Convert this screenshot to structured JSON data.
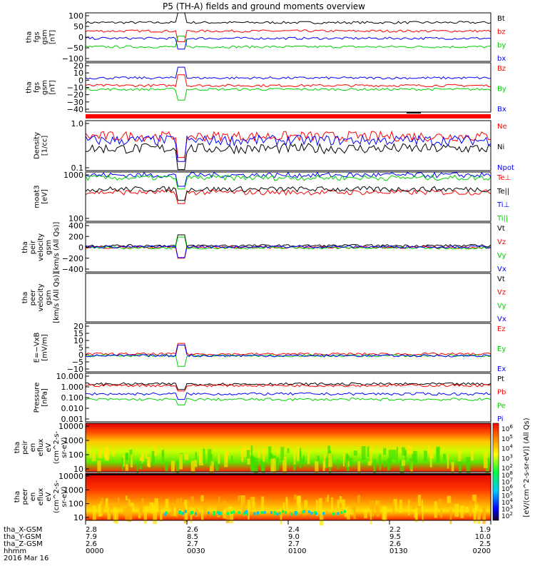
{
  "title": "P5 (TH-A) fields and ground moments overview",
  "colors": {
    "black": "#000000",
    "red": "#ff0000",
    "green": "#00d000",
    "blue": "#0000ff",
    "dgreen": "#00b000"
  },
  "x_axis": {
    "ticks": [
      "0000",
      "0030",
      "0100",
      "0130",
      "0200"
    ],
    "date_label": "2016 Mar 16",
    "rows": [
      {
        "label": "tha_X-GSM",
        "values": [
          "2.8",
          "2.6",
          "2.4",
          "2.2",
          "1.9"
        ]
      },
      {
        "label": "tha_Y-GSM",
        "values": [
          "7.9",
          "8.5",
          "9.0",
          "9.5",
          "10.0"
        ]
      },
      {
        "label": "tha_Z-GSM",
        "values": [
          "2.6",
          "2.7",
          "2.7",
          "2.6",
          "2.5"
        ]
      },
      {
        "label": "hhmm",
        "values": [
          "0000",
          "0030",
          "0100",
          "0130",
          "0200"
        ]
      }
    ]
  },
  "colorbar": {
    "label": "[eV/(cm^2-s-sr-eV)] (All Qs)",
    "upper_ticks": [
      "10^6",
      "10^5",
      "10^4",
      "10^3",
      "10^2"
    ],
    "lower_ticks": [
      "10^8",
      "10^7",
      "10^6",
      "10^5",
      "10^4",
      "10^3",
      "10^2"
    ]
  },
  "chart_data": [
    {
      "type": "line",
      "ylabel": [
        "tha",
        "fgs",
        "gsm",
        "[nT]"
      ],
      "yticks": [
        "100",
        "50",
        "0",
        "−50",
        "−100"
      ],
      "ylim": [
        -100,
        100
      ],
      "series": [
        {
          "name": "Bt",
          "color": "black",
          "level": 60
        },
        {
          "name": "bz",
          "color": "red",
          "level": 25
        },
        {
          "name": "by",
          "color": "green",
          "level": -40
        },
        {
          "name": "bx",
          "color": "blue",
          "level": -5
        }
      ]
    },
    {
      "type": "line",
      "ylabel": [
        "tha",
        "fgs",
        "gsm",
        "[nT]"
      ],
      "yticks": [
        "20",
        "10",
        "0",
        "−10",
        "−20",
        "−30",
        "−40"
      ],
      "ylim": [
        -45,
        20
      ],
      "series": [
        {
          "name": "Bz",
          "color": "red",
          "level": -10
        },
        {
          "name": "By",
          "color": "green",
          "level": -15
        },
        {
          "name": "Bx",
          "color": "blue",
          "level": 0
        }
      ]
    },
    {
      "type": "line",
      "ylabel": [
        "Density",
        "[1/cc]"
      ],
      "yticks": [
        "1.0",
        "0.1"
      ],
      "scale": "log",
      "ylim": [
        0.1,
        1.2
      ],
      "series": [
        {
          "name": "Ne",
          "color": "red",
          "level": 0.55
        },
        {
          "name": "Ni",
          "color": "black",
          "level": 0.3
        },
        {
          "name": "Npot",
          "color": "blue",
          "level": 0.45
        }
      ]
    },
    {
      "type": "line",
      "ylabel": [
        "moat3",
        "[eV]"
      ],
      "yticks": [
        "1000",
        "100"
      ],
      "scale": "log",
      "ylim": [
        60,
        6000
      ],
      "series": [
        {
          "name": "Te⊥",
          "color": "red",
          "level": 900
        },
        {
          "name": "Te||",
          "color": "black",
          "level": 1200
        },
        {
          "name": "Ti⊥",
          "color": "blue",
          "level": 4500
        },
        {
          "name": "Ti||",
          "color": "green",
          "level": 3500
        }
      ]
    },
    {
      "type": "line",
      "ylabel": [
        "tha",
        "peir",
        "velocity",
        "gsm",
        "[km/s (All Qs)]"
      ],
      "yticks": [
        "400",
        "200",
        "0",
        "−200",
        "−400"
      ],
      "ylim": [
        -450,
        450
      ],
      "series": [
        {
          "name": "Vt",
          "color": "black",
          "level": 30
        },
        {
          "name": "Vz",
          "color": "red",
          "level": 0
        },
        {
          "name": "Vy",
          "color": "green",
          "level": -10
        },
        {
          "name": "Vx",
          "color": "blue",
          "level": 10
        }
      ]
    },
    {
      "type": "line",
      "ylabel": [
        "tha",
        "peer",
        "velocity",
        "gsm",
        "[km/s (All Qs)]"
      ],
      "yticks": [],
      "ylim": [
        0,
        1
      ],
      "series": [
        {
          "name": "Vt",
          "color": "black",
          "level": null
        },
        {
          "name": "Vz",
          "color": "red",
          "level": null
        },
        {
          "name": "Vy",
          "color": "green",
          "level": null
        },
        {
          "name": "Vx",
          "color": "blue",
          "level": null
        }
      ]
    },
    {
      "type": "line",
      "ylabel": [
        "E=−VxB",
        "[mV/m]"
      ],
      "yticks": [
        "20",
        "15",
        "10",
        "5",
        "0",
        "−5",
        "−10"
      ],
      "ylim": [
        -10,
        20
      ],
      "series": [
        {
          "name": "Ez",
          "color": "red",
          "level": 1
        },
        {
          "name": "Ey",
          "color": "green",
          "level": 0
        },
        {
          "name": "Ex",
          "color": "blue",
          "level": 0
        }
      ]
    },
    {
      "type": "line",
      "ylabel": [
        "Pressure",
        "[nPa]"
      ],
      "yticks": [
        "10.000",
        "1.000",
        "0.100",
        "0.010",
        "0.001"
      ],
      "scale": "log",
      "ylim": [
        0.001,
        10
      ],
      "series": [
        {
          "name": "Pt",
          "color": "black",
          "level": 1.3
        },
        {
          "name": "Pb",
          "color": "red",
          "level": 1.0
        },
        {
          "name": "Pe",
          "color": "green",
          "level": 0.07
        },
        {
          "name": "Pi",
          "color": "blue",
          "level": 0.2
        }
      ]
    },
    {
      "type": "heatmap",
      "ylabel": [
        "tha",
        "peir",
        "en",
        "eflux",
        "eV",
        "(cm^2-s-",
        "sr-eV)"
      ],
      "yticks": [
        "10000",
        "1000",
        "100",
        "10"
      ]
    },
    {
      "type": "heatmap",
      "ylabel": [
        "tha",
        "peer",
        "en",
        "eflux",
        "eV",
        "(cm^2-s-",
        "sr-eV)"
      ],
      "yticks": [
        "10000",
        "1000",
        "100",
        "10"
      ]
    }
  ]
}
